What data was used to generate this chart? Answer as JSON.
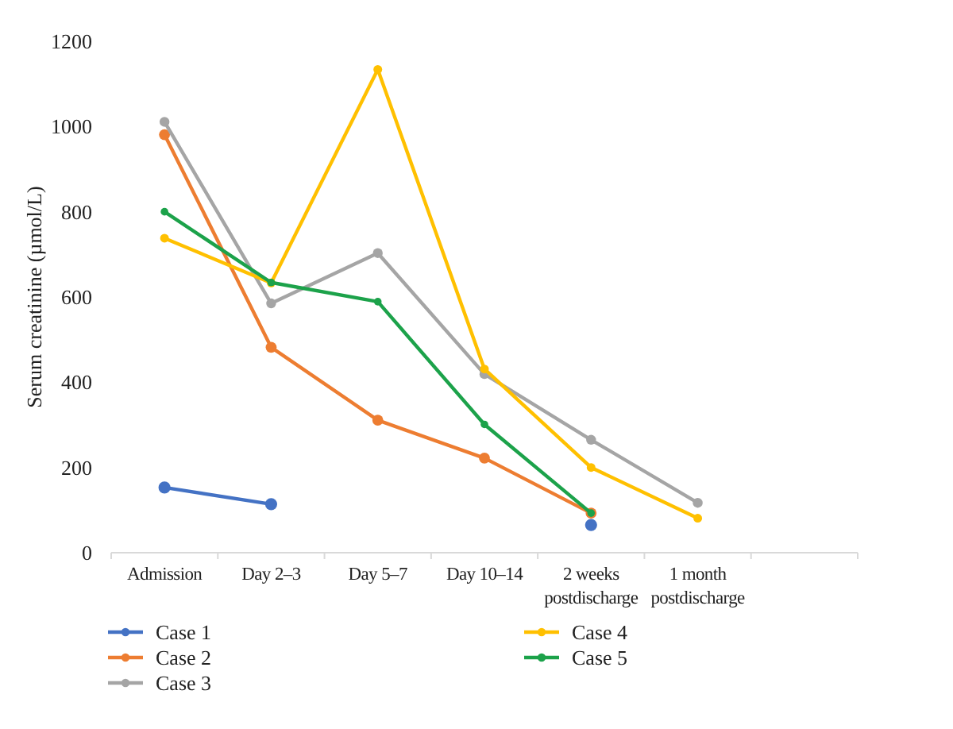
{
  "chart_data": {
    "type": "line",
    "ylabel": "Serum creatinine (µmol/L)",
    "categories": [
      "Admission",
      "Day 2–3",
      "Day 5–7",
      "Day 10–14",
      "2 weeks postdischarge",
      "1 month postdischarge",
      null
    ],
    "series": [
      {
        "name": "Case 1",
        "color": "#4472c4",
        "values": [
          153,
          114,
          null,
          null,
          65,
          null,
          null
        ]
      },
      {
        "name": "Case 2",
        "color": "#ed7d31",
        "values": [
          981,
          482,
          311,
          222,
          93,
          null,
          null
        ]
      },
      {
        "name": "Case 3",
        "color": "#a5a5a5",
        "values": [
          1011,
          585,
          703,
          419,
          265,
          117,
          null
        ]
      },
      {
        "name": "Case 4",
        "color": "#ffc000",
        "values": [
          738,
          633,
          1134,
          431,
          200,
          81,
          null
        ]
      },
      {
        "name": "Case 5",
        "color": "#1ca24a",
        "values": [
          800,
          634,
          589,
          301,
          93,
          null,
          null
        ]
      }
    ],
    "ylim": [
      0,
      1200
    ],
    "yticks": [
      0,
      200,
      400,
      600,
      800,
      1000,
      1200
    ],
    "grid": false,
    "legend": "bottom",
    "marker": "circle",
    "line_style": "solid"
  }
}
